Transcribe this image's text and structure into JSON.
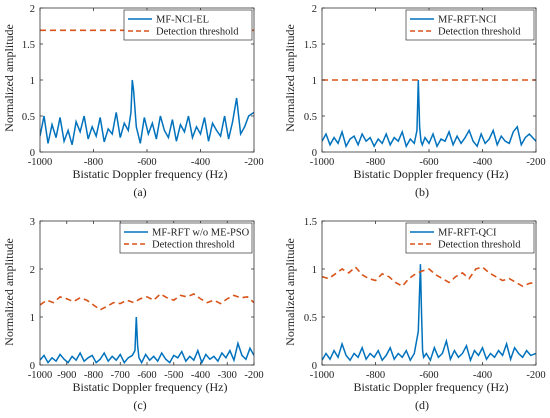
{
  "chart_data": [
    {
      "type": "line",
      "caption": "(a)",
      "xlabel": "Bistatic Doppler frequency (Hz)",
      "ylabel": "Normalized amplitude",
      "xlim": [
        -1000,
        -200
      ],
      "ylim": [
        0,
        2
      ],
      "xticks": [
        -1000,
        -800,
        -600,
        -400,
        -200
      ],
      "xtick_labels": [
        "-1000",
        "-800",
        "-600",
        "-400",
        "-200"
      ],
      "yticks": [
        0,
        0.5,
        1,
        1.5,
        2
      ],
      "ytick_labels": [
        "0",
        "0.5",
        "1",
        "1.5",
        "2"
      ],
      "legend_position": "top-right",
      "series": [
        {
          "name": "MF-NCI-EL",
          "style": "solid",
          "color": "#0072bd",
          "x": [
            -1000,
            -985,
            -970,
            -955,
            -940,
            -925,
            -910,
            -895,
            -880,
            -865,
            -850,
            -835,
            -820,
            -805,
            -790,
            -775,
            -760,
            -745,
            -730,
            -715,
            -700,
            -685,
            -670,
            -660,
            -655,
            -650,
            -645,
            -640,
            -625,
            -610,
            -595,
            -580,
            -565,
            -550,
            -535,
            -520,
            -505,
            -490,
            -475,
            -460,
            -445,
            -430,
            -415,
            -400,
            -385,
            -370,
            -355,
            -340,
            -325,
            -310,
            -295,
            -280,
            -265,
            -250,
            -235,
            -220,
            -200
          ],
          "y": [
            0.22,
            0.5,
            0.12,
            0.38,
            0.2,
            0.48,
            0.15,
            0.3,
            0.1,
            0.42,
            0.28,
            0.5,
            0.18,
            0.35,
            0.22,
            0.48,
            0.14,
            0.32,
            0.25,
            0.55,
            0.2,
            0.4,
            0.3,
            0.55,
            1.0,
            0.85,
            0.6,
            0.35,
            0.12,
            0.48,
            0.25,
            0.4,
            0.18,
            0.5,
            0.3,
            0.2,
            0.45,
            0.15,
            0.38,
            0.28,
            0.5,
            0.2,
            0.35,
            0.25,
            0.48,
            0.15,
            0.4,
            0.3,
            0.22,
            0.5,
            0.18,
            0.42,
            0.75,
            0.25,
            0.35,
            0.5,
            0.55
          ]
        },
        {
          "name": "Detection threshold",
          "style": "dashed",
          "color": "#d95319",
          "x": [
            -1000,
            -200
          ],
          "y": [
            1.69,
            1.69
          ]
        }
      ]
    },
    {
      "type": "line",
      "caption": "(b)",
      "xlabel": "Bistatic Doppler frequency (Hz)",
      "ylabel": "Normalized amplitude",
      "xlim": [
        -1000,
        -200
      ],
      "ylim": [
        0,
        2
      ],
      "xticks": [
        -1000,
        -800,
        -600,
        -400,
        -200
      ],
      "xtick_labels": [
        "-1000",
        "-800",
        "-600",
        "-400",
        "-200"
      ],
      "yticks": [
        0,
        0.5,
        1,
        1.5,
        2
      ],
      "ytick_labels": [
        "0",
        "0.5",
        "1",
        "1.5",
        "2"
      ],
      "legend_position": "top-right",
      "series": [
        {
          "name": "MF-RFT-NCI",
          "style": "solid",
          "color": "#0072bd",
          "x": [
            -1000,
            -985,
            -970,
            -955,
            -940,
            -925,
            -910,
            -895,
            -880,
            -865,
            -850,
            -835,
            -820,
            -805,
            -790,
            -775,
            -760,
            -745,
            -730,
            -715,
            -700,
            -685,
            -670,
            -655,
            -645,
            -640,
            -635,
            -630,
            -625,
            -615,
            -600,
            -585,
            -570,
            -555,
            -540,
            -525,
            -510,
            -495,
            -480,
            -465,
            -450,
            -435,
            -420,
            -405,
            -390,
            -375,
            -360,
            -345,
            -330,
            -315,
            -300,
            -285,
            -270,
            -255,
            -240,
            -225,
            -200
          ],
          "y": [
            0.15,
            0.25,
            0.1,
            0.2,
            0.12,
            0.28,
            0.08,
            0.18,
            0.22,
            0.1,
            0.25,
            0.15,
            0.2,
            0.08,
            0.18,
            0.12,
            0.25,
            0.1,
            0.2,
            0.15,
            0.28,
            0.08,
            0.18,
            0.12,
            0.3,
            1.0,
            0.35,
            0.15,
            0.1,
            0.2,
            0.12,
            0.25,
            0.08,
            0.18,
            0.15,
            0.28,
            0.1,
            0.22,
            0.12,
            0.2,
            0.3,
            0.15,
            0.08,
            0.25,
            0.12,
            0.18,
            0.3,
            0.1,
            0.22,
            0.15,
            0.12,
            0.28,
            0.35,
            0.1,
            0.2,
            0.25,
            0.15
          ]
        },
        {
          "name": "Detection threshold",
          "style": "dashed",
          "color": "#d95319",
          "x": [
            -1000,
            -200
          ],
          "y": [
            1.0,
            1.0
          ]
        }
      ]
    },
    {
      "type": "line",
      "caption": "(c)",
      "xlabel": "Bistatic Doppler frequency (Hz)",
      "ylabel": "Normalized amplitude",
      "xlim": [
        -1000,
        -200
      ],
      "ylim": [
        0,
        3
      ],
      "xticks": [
        -1000,
        -900,
        -800,
        -700,
        -600,
        -500,
        -400,
        -300,
        -200
      ],
      "xtick_labels": [
        "-1000",
        "-900",
        "-800",
        "-700",
        "-600",
        "-500",
        "-400",
        "-300",
        "-200"
      ],
      "yticks": [
        0,
        1,
        2,
        3
      ],
      "ytick_labels": [
        "0",
        "1",
        "2",
        "3"
      ],
      "legend_position": "top-right",
      "series": [
        {
          "name": "MF-RFT w/o ME-PSO",
          "style": "solid",
          "color": "#0072bd",
          "x": [
            -1000,
            -985,
            -970,
            -955,
            -940,
            -925,
            -910,
            -895,
            -880,
            -865,
            -850,
            -835,
            -820,
            -805,
            -790,
            -775,
            -760,
            -745,
            -730,
            -715,
            -700,
            -685,
            -670,
            -655,
            -645,
            -640,
            -635,
            -630,
            -620,
            -605,
            -590,
            -575,
            -560,
            -545,
            -530,
            -515,
            -500,
            -485,
            -470,
            -455,
            -440,
            -425,
            -410,
            -395,
            -380,
            -365,
            -350,
            -335,
            -320,
            -305,
            -290,
            -275,
            -260,
            -245,
            -230,
            -215,
            -200
          ],
          "y": [
            0.1,
            0.2,
            0.05,
            0.15,
            0.08,
            0.22,
            0.12,
            0.05,
            0.18,
            0.1,
            0.25,
            0.08,
            0.15,
            0.2,
            0.05,
            0.12,
            0.25,
            0.08,
            0.18,
            0.1,
            0.22,
            0.05,
            0.15,
            0.2,
            0.3,
            1.0,
            0.4,
            0.15,
            0.05,
            0.22,
            0.1,
            0.18,
            0.08,
            0.25,
            0.12,
            0.05,
            0.2,
            0.15,
            0.28,
            0.08,
            0.18,
            0.1,
            0.3,
            0.05,
            0.22,
            0.12,
            0.18,
            0.08,
            0.25,
            0.15,
            0.3,
            0.1,
            0.45,
            0.2,
            0.12,
            0.35,
            0.2
          ]
        },
        {
          "name": "Detection threshold",
          "style": "dashed",
          "color": "#d95319",
          "x": [
            -1000,
            -975,
            -950,
            -925,
            -900,
            -875,
            -850,
            -825,
            -800,
            -775,
            -750,
            -725,
            -700,
            -675,
            -650,
            -625,
            -600,
            -575,
            -550,
            -525,
            -500,
            -475,
            -450,
            -425,
            -400,
            -375,
            -350,
            -325,
            -300,
            -275,
            -250,
            -225,
            -200
          ],
          "y": [
            1.25,
            1.35,
            1.3,
            1.42,
            1.38,
            1.32,
            1.4,
            1.35,
            1.25,
            1.15,
            1.22,
            1.3,
            1.28,
            1.35,
            1.3,
            1.38,
            1.42,
            1.35,
            1.48,
            1.4,
            1.35,
            1.45,
            1.42,
            1.48,
            1.38,
            1.3,
            1.35,
            1.28,
            1.38,
            1.45,
            1.4,
            1.42,
            1.3
          ]
        }
      ]
    },
    {
      "type": "line",
      "caption": "(d)",
      "xlabel": "Bistatic Doppler frequency (Hz)",
      "ylabel": "Normalized amplitude",
      "xlim": [
        -1000,
        -200
      ],
      "ylim": [
        0,
        1.5
      ],
      "xticks": [
        -1000,
        -800,
        -600,
        -400,
        -200
      ],
      "xtick_labels": [
        "-1000",
        "-800",
        "-600",
        "-400",
        "-200"
      ],
      "yticks": [
        0,
        0.5,
        1,
        1.5
      ],
      "ytick_labels": [
        "0",
        "0.5",
        "1",
        "1.5"
      ],
      "legend_position": "top-right",
      "series": [
        {
          "name": "MF-RFT-QCI",
          "style": "solid",
          "color": "#0072bd",
          "x": [
            -1000,
            -985,
            -970,
            -955,
            -940,
            -925,
            -910,
            -895,
            -880,
            -865,
            -850,
            -835,
            -820,
            -805,
            -790,
            -775,
            -760,
            -745,
            -730,
            -715,
            -700,
            -685,
            -670,
            -655,
            -640,
            -632,
            -628,
            -624,
            -620,
            -610,
            -595,
            -580,
            -565,
            -550,
            -535,
            -520,
            -505,
            -490,
            -475,
            -460,
            -445,
            -430,
            -415,
            -400,
            -385,
            -370,
            -355,
            -340,
            -325,
            -310,
            -295,
            -280,
            -265,
            -250,
            -235,
            -220,
            -200
          ],
          "y": [
            0.05,
            0.12,
            0.06,
            0.15,
            0.08,
            0.22,
            0.1,
            0.05,
            0.12,
            0.08,
            0.18,
            0.06,
            0.12,
            0.08,
            0.15,
            0.05,
            0.1,
            0.18,
            0.06,
            0.12,
            0.08,
            0.15,
            0.05,
            0.12,
            0.35,
            1.05,
            0.55,
            0.15,
            0.08,
            0.12,
            0.05,
            0.18,
            0.08,
            0.12,
            0.25,
            0.06,
            0.15,
            0.08,
            0.12,
            0.2,
            0.05,
            0.15,
            0.1,
            0.18,
            0.06,
            0.12,
            0.08,
            0.15,
            0.1,
            0.22,
            0.06,
            0.18,
            0.12,
            0.08,
            0.15,
            0.1,
            0.12
          ]
        },
        {
          "name": "Detection threshold",
          "style": "dashed",
          "color": "#d95319",
          "x": [
            -1000,
            -975,
            -950,
            -925,
            -900,
            -875,
            -850,
            -825,
            -800,
            -775,
            -750,
            -725,
            -700,
            -675,
            -650,
            -625,
            -600,
            -575,
            -550,
            -525,
            -500,
            -475,
            -450,
            -425,
            -400,
            -375,
            -350,
            -325,
            -300,
            -275,
            -250,
            -225,
            -200
          ],
          "y": [
            0.92,
            0.9,
            0.95,
            1.0,
            0.96,
            1.02,
            0.94,
            0.9,
            0.88,
            0.95,
            0.92,
            0.86,
            0.82,
            0.9,
            0.95,
            0.98,
            1.0,
            0.94,
            0.9,
            0.86,
            0.92,
            0.96,
            0.9,
            1.0,
            1.02,
            0.96,
            0.92,
            0.88,
            0.9,
            0.86,
            0.82,
            0.85,
            0.86
          ]
        }
      ]
    }
  ]
}
